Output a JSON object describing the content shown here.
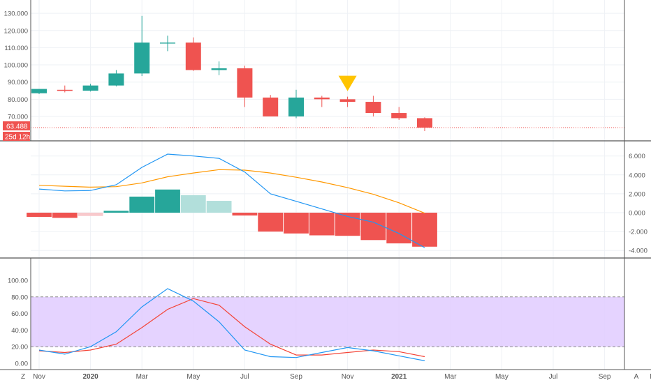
{
  "colors": {
    "up": "#26a69a",
    "down": "#ef5350",
    "up_light": "#b2dfdb",
    "down_light": "#f8c9cc",
    "macd_line": "#2196f3",
    "signal_line": "#ff9800",
    "stoch_k": "#2196f3",
    "stoch_d": "#f44336",
    "stoch_band": "#e1cbff",
    "marker": "#ffc400",
    "grid": "#eef1f5",
    "axis_text": "#555555"
  },
  "price_badge": {
    "price": "63.488",
    "countdown": "25d 12h"
  },
  "corner_buttons": {
    "left": "Z",
    "right": "A"
  },
  "x_axis": {
    "months": [
      "Nov",
      "2020",
      "Mar",
      "May",
      "Jul",
      "Sep",
      "Nov",
      "2021",
      "Mar",
      "May",
      "Jul",
      "Sep",
      "Nov"
    ],
    "bold": [
      "2020",
      "2021"
    ]
  },
  "chart_data": [
    {
      "type": "candlestick",
      "period": "monthly",
      "categories": [
        "Nov 2019",
        "Dec 2019",
        "Jan 2020",
        "Feb 2020",
        "Mar 2020",
        "Apr 2020",
        "May 2020",
        "Jun 2020",
        "Jul 2020",
        "Aug 2020",
        "Sep 2020",
        "Oct 2020",
        "Nov 2020",
        "Dec 2020",
        "Jan 2021",
        "Feb 2021"
      ],
      "open": [
        83.5,
        85.5,
        85.0,
        88.0,
        95.0,
        113.0,
        113.0,
        97.0,
        98.0,
        81.0,
        70.0,
        81.0,
        80.0,
        78.5,
        72.0,
        69.0
      ],
      "high": [
        86.0,
        88.0,
        89.0,
        97.0,
        128.5,
        117.0,
        116.0,
        102.0,
        99.5,
        82.5,
        85.5,
        82.0,
        81.5,
        82.0,
        75.5,
        69.5
      ],
      "low": [
        83.0,
        84.0,
        84.5,
        87.5,
        93.5,
        108.0,
        96.5,
        94.0,
        75.5,
        70.0,
        69.0,
        75.5,
        75.5,
        70.0,
        68.0,
        61.5
      ],
      "close": [
        86.0,
        85.0,
        88.0,
        95.0,
        113.0,
        113.0,
        97.0,
        98.0,
        81.0,
        70.0,
        81.0,
        80.0,
        78.5,
        72.0,
        69.0,
        63.488
      ],
      "y_ticks": [
        "70.000",
        "80.000",
        "90.000",
        "100.000",
        "110.000",
        "120.000",
        "130.000"
      ],
      "ylim": [
        61,
        133
      ],
      "markers": [
        {
          "category": "Nov 2020",
          "shape": "down-triangle",
          "value": 88.0
        }
      ]
    },
    {
      "type": "bar+line",
      "name": "MACD",
      "categories": [
        "Nov 2019",
        "Dec 2019",
        "Jan 2020",
        "Feb 2020",
        "Mar 2020",
        "Apr 2020",
        "May 2020",
        "Jun 2020",
        "Jul 2020",
        "Aug 2020",
        "Sep 2020",
        "Oct 2020",
        "Nov 2020",
        "Dec 2020",
        "Jan 2021",
        "Feb 2021"
      ],
      "histogram": [
        -0.45,
        -0.55,
        -0.35,
        0.2,
        1.7,
        2.45,
        1.85,
        1.25,
        -0.3,
        -2.0,
        -2.2,
        -2.4,
        -2.45,
        -2.9,
        -3.25,
        -3.6
      ],
      "macd": [
        2.5,
        2.3,
        2.35,
        2.95,
        4.8,
        6.2,
        6.0,
        5.75,
        4.3,
        2.0,
        1.2,
        0.4,
        -0.4,
        -1.0,
        -2.2,
        -3.7
      ],
      "signal": [
        2.9,
        2.8,
        2.7,
        2.75,
        3.15,
        3.8,
        4.2,
        4.55,
        4.5,
        4.2,
        3.75,
        3.25,
        2.65,
        1.95,
        1.05,
        -0.05
      ],
      "y_ticks": [
        "-4.000",
        "-2.000",
        "0.000",
        "2.000",
        "4.000",
        "6.000"
      ],
      "ylim": [
        -4.6,
        6.9
      ]
    },
    {
      "type": "line",
      "name": "Stochastic",
      "categories": [
        "Nov 2019",
        "Dec 2019",
        "Jan 2020",
        "Feb 2020",
        "Mar 2020",
        "Apr 2020",
        "May 2020",
        "Jun 2020",
        "Jul 2020",
        "Aug 2020",
        "Sep 2020",
        "Oct 2020",
        "Nov 2020",
        "Dec 2020",
        "Jan 2021",
        "Feb 2021"
      ],
      "k": [
        16,
        11,
        20,
        38,
        68,
        90,
        75,
        50,
        16,
        8,
        7,
        13,
        19,
        15,
        9,
        3
      ],
      "d": [
        15,
        13,
        16,
        23,
        43,
        65,
        78,
        70,
        44,
        23,
        10,
        10,
        13,
        16,
        14,
        8
      ],
      "bands": [
        20,
        80
      ],
      "y_ticks": [
        "0.00",
        "20.00",
        "40.00",
        "60.00",
        "80.00",
        "100.00"
      ],
      "ylim": [
        -5,
        100
      ]
    }
  ]
}
